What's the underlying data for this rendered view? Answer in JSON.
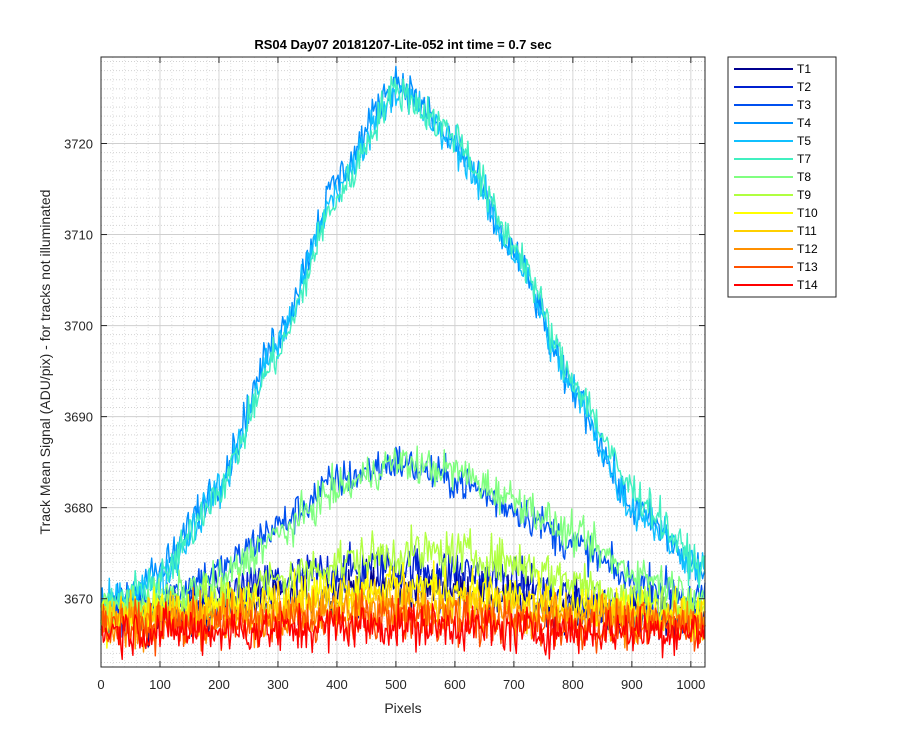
{
  "chart_data": {
    "type": "line",
    "title": "RS04 Day07 20181207-Lite-052 int time = 0.7 sec",
    "xlabel": "Pixels",
    "ylabel": "Track Mean Signal (ADU/pix) - for tracks not illuminated",
    "xlim": [
      0,
      1024
    ],
    "ylim": [
      3662.5,
      3729.5
    ],
    "x_ticks": [
      0,
      100,
      200,
      300,
      400,
      500,
      600,
      700,
      800,
      900,
      1000
    ],
    "y_ticks": [
      3670,
      3680,
      3690,
      3700,
      3710,
      3720
    ],
    "grid": true,
    "minor_grid": true,
    "legend_position": "outside-top-right",
    "x_sample": [
      0,
      100,
      200,
      300,
      400,
      500,
      600,
      700,
      800,
      900,
      1024
    ],
    "series": [
      {
        "name": "T1",
        "color": "#00008f",
        "y": [
          3668,
          3668,
          3669,
          3670,
          3671,
          3671.5,
          3671,
          3670,
          3669,
          3668,
          3667.5
        ],
        "noise": 1.8
      },
      {
        "name": "T2",
        "color": "#0020d0",
        "y": [
          3668,
          3669,
          3670,
          3672,
          3673,
          3673.5,
          3673,
          3672,
          3670,
          3669,
          3668
        ],
        "noise": 1.8
      },
      {
        "name": "T3",
        "color": "#0050f0",
        "y": [
          3669,
          3670,
          3673,
          3678,
          3683,
          3685,
          3683,
          3680,
          3676,
          3672,
          3670
        ],
        "noise": 1.5
      },
      {
        "name": "T4",
        "color": "#0090ff",
        "y": [
          3669,
          3673,
          3683,
          3699,
          3716,
          3727,
          3720,
          3708,
          3693,
          3680,
          3673
        ],
        "noise": 1.5
      },
      {
        "name": "T5",
        "color": "#10c0ff",
        "y": [
          3669,
          3672,
          3682,
          3698,
          3715,
          3726,
          3720,
          3708,
          3693,
          3680,
          3673
        ],
        "noise": 1.5
      },
      {
        "name": "T7",
        "color": "#40f0c0",
        "y": [
          3669,
          3672,
          3682,
          3697,
          3714,
          3726,
          3721,
          3709,
          3694,
          3682,
          3673
        ],
        "noise": 1.5
      },
      {
        "name": "T8",
        "color": "#80ff80",
        "y": [
          3669,
          3670,
          3672,
          3677,
          3682,
          3685,
          3684,
          3681,
          3677,
          3673,
          3670
        ],
        "noise": 1.5
      },
      {
        "name": "T9",
        "color": "#b0ff40",
        "y": [
          3668,
          3669,
          3670,
          3672,
          3674,
          3675,
          3675,
          3674,
          3672,
          3670,
          3668.5
        ],
        "noise": 1.8
      },
      {
        "name": "T10",
        "color": "#ffff00",
        "y": [
          3668,
          3668.5,
          3669,
          3670,
          3671,
          3671.5,
          3671,
          3670,
          3669,
          3668.5,
          3668
        ],
        "noise": 1.8
      },
      {
        "name": "T11",
        "color": "#ffd000",
        "y": [
          3668,
          3668,
          3668.5,
          3669,
          3669.5,
          3670,
          3669.5,
          3669,
          3668.5,
          3668,
          3668
        ],
        "noise": 1.8
      },
      {
        "name": "T12",
        "color": "#ff9000",
        "y": [
          3667.5,
          3667.5,
          3668,
          3668,
          3668.5,
          3669,
          3668.5,
          3668,
          3668,
          3667.5,
          3667.5
        ],
        "noise": 1.8
      },
      {
        "name": "T13",
        "color": "#ff5000",
        "y": [
          3667,
          3667,
          3667,
          3667.5,
          3667.5,
          3668,
          3667.5,
          3667.5,
          3667,
          3667,
          3667
        ],
        "noise": 1.8
      },
      {
        "name": "T14",
        "color": "#ff0000",
        "y": [
          3666.5,
          3666.5,
          3666.5,
          3666.5,
          3667,
          3667,
          3667,
          3666.5,
          3666.5,
          3666.5,
          3666.5
        ],
        "noise": 1.8
      }
    ]
  }
}
